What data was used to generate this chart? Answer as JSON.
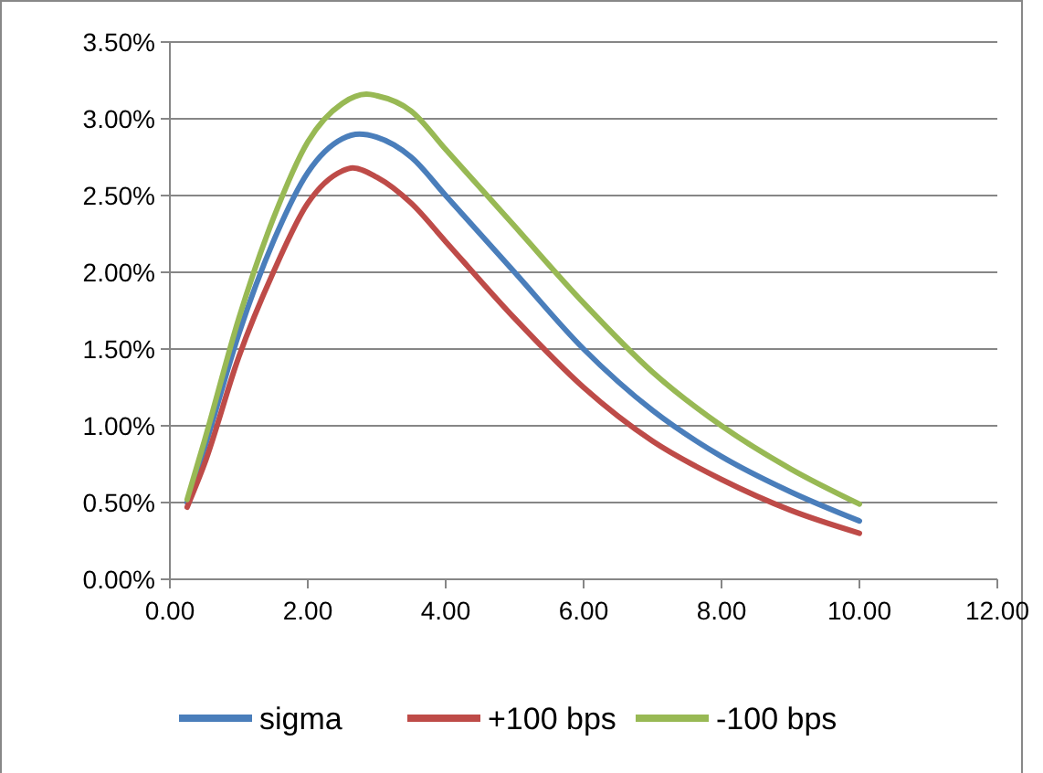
{
  "chart_data": {
    "type": "line",
    "grid": "y",
    "legend": "bottom",
    "marker": "none",
    "line_style": "solid",
    "xlim": [
      0,
      12
    ],
    "ylim": [
      0,
      3.5
    ],
    "xticks": [
      {
        "value": 0,
        "label": "0.00"
      },
      {
        "value": 2,
        "label": "2.00"
      },
      {
        "value": 4,
        "label": "4.00"
      },
      {
        "value": 6,
        "label": "6.00"
      },
      {
        "value": 8,
        "label": "8.00"
      },
      {
        "value": 10,
        "label": "10.00"
      },
      {
        "value": 12,
        "label": "12.00"
      }
    ],
    "yticks": [
      {
        "value": 0,
        "label": "0.00%"
      },
      {
        "value": 0.5,
        "label": "0.50%"
      },
      {
        "value": 1,
        "label": "1.00%"
      },
      {
        "value": 1.5,
        "label": "1.50%"
      },
      {
        "value": 2,
        "label": "2.00%"
      },
      {
        "value": 2.5,
        "label": "2.50%"
      },
      {
        "value": 3,
        "label": "3.00%"
      },
      {
        "value": 3.5,
        "label": "3.50%"
      }
    ],
    "series": [
      {
        "name": "sigma",
        "color": "#4a7ebb",
        "x": [
          0.25,
          0.5,
          1,
          1.5,
          2,
          2.5,
          2.75,
          3,
          3.5,
          4,
          5,
          6,
          7,
          8,
          9,
          10
        ],
        "values": [
          0.5,
          0.85,
          1.6,
          2.2,
          2.65,
          2.87,
          2.9,
          2.88,
          2.75,
          2.5,
          2.0,
          1.5,
          1.1,
          0.8,
          0.57,
          0.38
        ]
      },
      {
        "name": "+100 bps",
        "color": "#be4b48",
        "x": [
          0.25,
          0.5,
          1,
          1.5,
          2,
          2.5,
          2.65,
          3,
          3.5,
          4,
          5,
          6,
          7,
          8,
          9,
          10
        ],
        "values": [
          0.47,
          0.75,
          1.45,
          2.0,
          2.45,
          2.66,
          2.68,
          2.62,
          2.45,
          2.2,
          1.7,
          1.25,
          0.9,
          0.65,
          0.45,
          0.3
        ]
      },
      {
        "name": "-100 bps",
        "color": "#98b954",
        "x": [
          0.25,
          0.5,
          1,
          1.5,
          2,
          2.5,
          2.85,
          3,
          3.5,
          4,
          5,
          6,
          7,
          8,
          9,
          10
        ],
        "values": [
          0.52,
          0.9,
          1.7,
          2.35,
          2.85,
          3.1,
          3.16,
          3.15,
          3.05,
          2.8,
          2.3,
          1.8,
          1.35,
          1.0,
          0.72,
          0.49
        ]
      }
    ]
  }
}
